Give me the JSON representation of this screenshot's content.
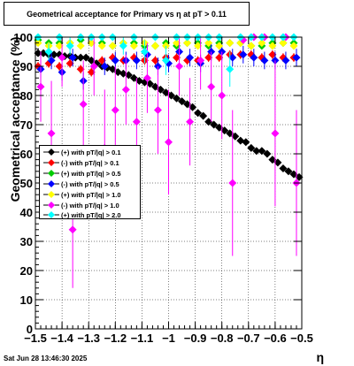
{
  "window": {
    "title": "Geometrical acceptance for Primary vs    η  at pT > 0.11",
    "datestamp": "Sat Jun 28 13:46:30 2025"
  },
  "colors": {
    "black": "#000000",
    "red": "#ff0000",
    "green": "#00cc00",
    "blue": "#0000ff",
    "yellow": "#ffff00",
    "magenta": "#ff00ff",
    "cyan": "#00ffff"
  },
  "chart_data": {
    "type": "scatter",
    "title": "Geometrical acceptance for Primary vs    η  at pT > 0.11",
    "xlabel": "η",
    "ylabel": "Geometrical acceptance (%)",
    "xlim": [
      -1.5,
      -0.5
    ],
    "ylim": [
      0,
      100
    ],
    "xticks": [
      "−1.5",
      "−1.4",
      "−1.3",
      "−1.2",
      "−1.1",
      "−1",
      "−0.9",
      "−0.8",
      "−0.7",
      "−0.6",
      "−0.5"
    ],
    "yticks": [
      "0",
      "10",
      "20",
      "30",
      "40",
      "50",
      "60",
      "70",
      "80",
      "90",
      "100"
    ],
    "grid": true,
    "legend_position": "left-center",
    "series": [
      {
        "name": "(+) with pT/|q| > 0.1",
        "color": "#000000",
        "x": [
          -1.49,
          -1.47,
          -1.45,
          -1.43,
          -1.41,
          -1.39,
          -1.37,
          -1.35,
          -1.33,
          -1.31,
          -1.29,
          -1.27,
          -1.25,
          -1.23,
          -1.21,
          -1.19,
          -1.17,
          -1.15,
          -1.13,
          -1.11,
          -1.09,
          -1.07,
          -1.05,
          -1.03,
          -1.01,
          -0.99,
          -0.97,
          -0.95,
          -0.93,
          -0.91,
          -0.89,
          -0.87,
          -0.85,
          -0.83,
          -0.81,
          -0.79,
          -0.77,
          -0.75,
          -0.73,
          -0.71,
          -0.69,
          -0.67,
          -0.65,
          -0.63,
          -0.61,
          -0.59,
          -0.57,
          -0.55,
          -0.53,
          -0.51
        ],
        "y": [
          94.5,
          94.5,
          94,
          94,
          94,
          93.5,
          93.5,
          93,
          93,
          93,
          92,
          91,
          90,
          89.5,
          89,
          88,
          87.5,
          87,
          86,
          85,
          84.5,
          84,
          83,
          82,
          81,
          80,
          79,
          78,
          77,
          76,
          74,
          73,
          71,
          70,
          69,
          68,
          67,
          66,
          64.5,
          64,
          62,
          61,
          61,
          60,
          58,
          57,
          55,
          54,
          53,
          52
        ],
        "err": [
          1,
          1,
          1,
          1,
          1,
          1,
          1,
          1,
          1,
          1,
          1,
          1,
          1,
          1,
          1,
          1,
          1,
          1,
          1,
          1,
          1,
          1,
          1,
          1,
          1,
          1,
          1,
          1,
          1,
          1,
          1,
          1,
          1,
          1,
          1,
          1,
          1,
          1,
          1,
          1,
          1,
          1,
          1,
          1,
          1,
          1,
          1,
          1,
          1,
          1
        ]
      },
      {
        "name": "(-) with pT/|q| > 0.1",
        "color": "#ff0000",
        "x": [
          -1.49,
          -1.45,
          -1.41,
          -1.37,
          -1.33,
          -1.29,
          -1.25,
          -1.21,
          -1.17,
          -1.13,
          -1.09,
          -1.05,
          -1.01,
          -0.97,
          -0.93,
          -0.89,
          -0.85,
          -0.81,
          -0.77,
          -0.73,
          -0.69,
          -0.65,
          -0.61,
          -0.57,
          -0.53
        ],
        "y": [
          90,
          91,
          90,
          91,
          89,
          88,
          92,
          93,
          92,
          93,
          92,
          92,
          93,
          93,
          92,
          92,
          93,
          93,
          94,
          94,
          94,
          93,
          94,
          93,
          93
        ],
        "err": [
          1.5,
          1.5,
          1.5,
          1.5,
          1.5,
          1.5,
          1.5,
          1.5,
          1.5,
          1.5,
          1.5,
          1.5,
          1.5,
          1.5,
          1.5,
          1.5,
          1.5,
          1.5,
          1.5,
          1.5,
          1.5,
          1.5,
          1.5,
          1.5,
          1.5
        ]
      },
      {
        "name": "(+) with pT/|q| > 0.5",
        "color": "#00cc00",
        "x": [
          -1.49,
          -1.45,
          -1.41,
          -1.37,
          -1.33,
          -1.29,
          -1.25,
          -1.21,
          -1.17,
          -1.13,
          -1.09,
          -1.05,
          -1.01,
          -0.97,
          -0.93,
          -0.89,
          -0.85,
          -0.81,
          -0.77,
          -0.73,
          -0.69,
          -0.65,
          -0.61,
          -0.57,
          -0.53
        ],
        "y": [
          99,
          98,
          98,
          98,
          99,
          98,
          98,
          97,
          98,
          98,
          97,
          97,
          98,
          97,
          98,
          98,
          97,
          98,
          98,
          98,
          97,
          97,
          98,
          98,
          98
        ],
        "err": [
          1,
          1,
          1,
          1,
          1,
          1,
          1,
          1,
          1,
          1,
          1,
          1,
          1,
          1,
          1,
          1,
          1,
          1,
          1,
          1,
          1,
          1,
          1,
          1,
          1
        ]
      },
      {
        "name": "(-) with pT/|q| > 0.5",
        "color": "#0000ff",
        "x": [
          -1.48,
          -1.44,
          -1.4,
          -1.36,
          -1.32,
          -1.28,
          -1.24,
          -1.2,
          -1.16,
          -1.12,
          -1.08,
          -1.04,
          -1.0,
          -0.96,
          -0.92,
          -0.88,
          -0.84,
          -0.8,
          -0.76,
          -0.72,
          -0.68,
          -0.64,
          -0.6,
          -0.56,
          -0.52
        ],
        "y": [
          89,
          92,
          88,
          93,
          85,
          90,
          90,
          92,
          92,
          92,
          94,
          90,
          91,
          95,
          93,
          91,
          95,
          95,
          93,
          94,
          93,
          92,
          92,
          92,
          93
        ],
        "err": [
          3,
          3,
          3,
          3,
          3,
          3,
          3,
          3,
          3,
          3,
          3,
          3,
          3,
          3,
          3,
          3,
          3,
          3,
          3,
          3,
          3,
          3,
          3,
          3,
          3
        ]
      },
      {
        "name": "(+) with pT/|q| > 1.0",
        "color": "#ffff00",
        "x": [
          -1.49,
          -1.45,
          -1.41,
          -1.37,
          -1.33,
          -1.29,
          -1.25,
          -1.21,
          -1.17,
          -1.13,
          -1.09,
          -1.05,
          -1.01,
          -0.97,
          -0.93,
          -0.89,
          -0.85,
          -0.81,
          -0.77,
          -0.73,
          -0.69,
          -0.65,
          -0.61,
          -0.57,
          -0.53
        ],
        "y": [
          98,
          97,
          97,
          98,
          97,
          98,
          97,
          97,
          98,
          97,
          98,
          97,
          97,
          98,
          98,
          97,
          98,
          97,
          98,
          98,
          97,
          98,
          97,
          98,
          97
        ],
        "err": [
          1,
          1,
          1,
          1,
          1,
          1,
          1,
          1,
          1,
          1,
          1,
          1,
          1,
          1,
          1,
          1,
          1,
          1,
          1,
          1,
          1,
          1,
          1,
          1,
          1
        ]
      },
      {
        "name": "(-) with pT/|q| > 1.0",
        "color": "#ff00ff",
        "x": [
          -1.48,
          -1.44,
          -1.4,
          -1.36,
          -1.32,
          -1.28,
          -1.24,
          -1.2,
          -1.16,
          -1.12,
          -1.08,
          -1.04,
          -1.0,
          -0.96,
          -0.92,
          -0.88,
          -0.84,
          -0.8,
          -0.76,
          -0.72,
          -0.68,
          -0.64,
          -0.6,
          -0.56,
          -0.52
        ],
        "y": [
          83,
          67,
          93,
          34,
          77,
          90,
          62,
          75,
          82,
          71,
          86,
          75,
          64,
          90,
          71,
          92,
          83,
          80,
          50,
          99,
          100,
          100,
          67,
          100,
          50
        ],
        "err": [
          12,
          18,
          10,
          20,
          15,
          10,
          20,
          15,
          12,
          15,
          12,
          15,
          18,
          10,
          15,
          10,
          12,
          15,
          25,
          1,
          1,
          1,
          25,
          1,
          25
        ]
      },
      {
        "name": "(+) with pT/|q| > 2.0",
        "color": "#00ffff",
        "x": [
          -1.49,
          -1.45,
          -1.41,
          -1.37,
          -1.33,
          -1.29,
          -1.25,
          -1.21,
          -1.17,
          -1.13,
          -1.09,
          -1.05,
          -1.01,
          -0.97,
          -0.93,
          -0.89,
          -0.85,
          -0.81,
          -0.77,
          -0.73,
          -0.69,
          -0.65,
          -0.61,
          -0.57,
          -0.53
        ],
        "y": [
          100,
          95,
          100,
          97,
          100,
          100,
          100,
          100,
          97,
          100,
          95,
          100,
          92,
          100,
          100,
          100,
          100,
          100,
          89,
          100,
          100,
          100,
          100,
          100,
          100
        ],
        "err": [
          1,
          3,
          1,
          3,
          1,
          1,
          1,
          1,
          3,
          1,
          4,
          1,
          5,
          1,
          1,
          1,
          1,
          1,
          6,
          1,
          1,
          1,
          1,
          1,
          1
        ]
      }
    ]
  }
}
